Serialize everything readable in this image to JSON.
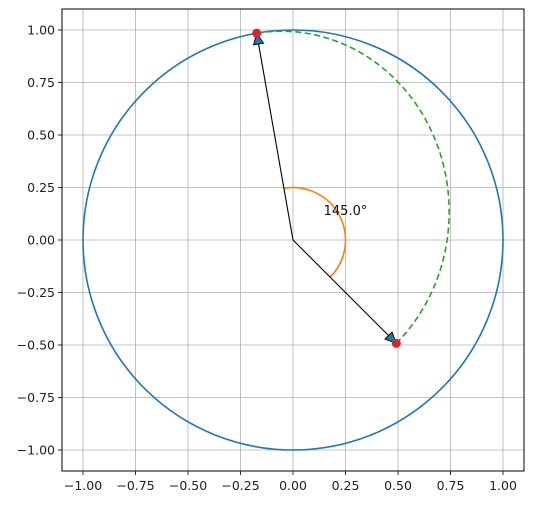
{
  "chart_data": {
    "type": "line",
    "title": "",
    "xlabel": "",
    "ylabel": "",
    "xlim": [
      -1.1,
      1.1
    ],
    "ylim": [
      -1.1,
      1.1
    ],
    "grid": true,
    "aspect": "equal",
    "x_ticks": [
      -1.0,
      -0.75,
      -0.5,
      -0.25,
      0.0,
      0.25,
      0.5,
      0.75,
      1.0
    ],
    "x_tick_labels": [
      "−1.00",
      "−0.75",
      "−0.50",
      "−0.25",
      "0.00",
      "0.25",
      "0.50",
      "0.75",
      "1.00"
    ],
    "y_ticks": [
      1.0,
      0.75,
      0.5,
      0.25,
      0.0,
      -0.25,
      -0.5,
      -0.75,
      -1.0
    ],
    "y_tick_labels": [
      "1.00",
      "0.75",
      "0.50",
      "0.25",
      "0.00",
      "−0.25",
      "−0.50",
      "−0.75",
      "−1.00"
    ],
    "unit_circle": {
      "center": [
        0,
        0
      ],
      "radius": 1.0,
      "color": "#1f77b4"
    },
    "vectors": [
      {
        "x": 0.492,
        "y": -0.492,
        "color": "#1f77b4"
      },
      {
        "x": -0.173,
        "y": 0.985,
        "color": "#1f77b4"
      }
    ],
    "points": [
      {
        "x": 0.492,
        "y": -0.492,
        "color": "#d62728"
      },
      {
        "x": -0.173,
        "y": 0.985,
        "color": "#d62728"
      }
    ],
    "angle_arc": {
      "radius": 0.25,
      "start_deg": -45,
      "end_deg": 100,
      "color": "#ff7f0e"
    },
    "dashed_arc": {
      "rx": 0.8,
      "ry": 0.86,
      "cy": 0.12,
      "color": "#2ca02c"
    },
    "annotation": {
      "text": "145.0°",
      "x": 0.25,
      "y": 0.12
    }
  }
}
